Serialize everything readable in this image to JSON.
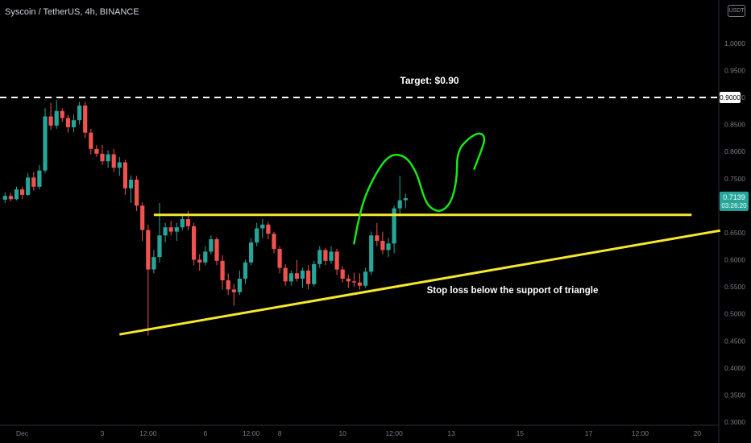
{
  "header": {
    "symbol_title": "Syscoin / TetherUS, 4h, BINANCE",
    "currency": "USDT"
  },
  "annotations": {
    "target_label": "Target: $0.90",
    "stoploss_label": "Stop loss below the support of triangle"
  },
  "price_badge": {
    "price": "0.7139",
    "countdown": "03:26:20",
    "color": "#26a69a"
  },
  "target_badge": {
    "price": "0.9000"
  },
  "colors": {
    "background": "#000000",
    "up": "#26a69a",
    "down": "#ef5350",
    "resistance": "#f6e82c",
    "support": "#f6e82c",
    "projection": "#19e619",
    "target_line": "#ffffff"
  },
  "chart_data": {
    "type": "candlestick",
    "title": "Syscoin / TetherUS, 4h, BINANCE",
    "ylim": [
      0.3,
      1.07
    ],
    "y_ticks": [
      "1.0000",
      "0.9500",
      "0.9000",
      "0.8500",
      "0.8000",
      "0.7500",
      "0.7000",
      "0.6500",
      "0.6000",
      "0.5500",
      "0.5000",
      "0.4500",
      "0.4000",
      "0.3500",
      "0.3000"
    ],
    "y_tick_values": [
      1.0,
      0.95,
      0.9,
      0.85,
      0.8,
      0.75,
      0.7,
      0.65,
      0.6,
      0.55,
      0.5,
      0.45,
      0.4,
      0.35,
      0.3
    ],
    "x_ticks": [
      {
        "label": "Dec",
        "bar": 3
      },
      {
        "label": "3",
        "bar": 17
      },
      {
        "label": "12:00",
        "bar": 25
      },
      {
        "label": "6",
        "bar": 35
      },
      {
        "label": "12:00",
        "bar": 43
      },
      {
        "label": "8",
        "bar": 48
      },
      {
        "label": "10",
        "bar": 59
      },
      {
        "label": "12:00",
        "bar": 68
      },
      {
        "label": "13",
        "bar": 78
      },
      {
        "label": "15",
        "bar": 90
      },
      {
        "label": "17",
        "bar": 102
      },
      {
        "label": "12:00",
        "bar": 111
      },
      {
        "label": "20",
        "bar": 121
      }
    ],
    "candles": [
      [
        0.711,
        0.725,
        0.705,
        0.718
      ],
      [
        0.718,
        0.724,
        0.708,
        0.712
      ],
      [
        0.712,
        0.735,
        0.71,
        0.73
      ],
      [
        0.73,
        0.735,
        0.712,
        0.72
      ],
      [
        0.72,
        0.76,
        0.718,
        0.752
      ],
      [
        0.752,
        0.762,
        0.728,
        0.735
      ],
      [
        0.735,
        0.775,
        0.73,
        0.765
      ],
      [
        0.765,
        0.88,
        0.76,
        0.865
      ],
      [
        0.865,
        0.89,
        0.84,
        0.848
      ],
      [
        0.848,
        0.895,
        0.842,
        0.875
      ],
      [
        0.875,
        0.88,
        0.855,
        0.862
      ],
      [
        0.862,
        0.868,
        0.835,
        0.845
      ],
      [
        0.845,
        0.868,
        0.836,
        0.858
      ],
      [
        0.858,
        0.892,
        0.85,
        0.885
      ],
      [
        0.885,
        0.892,
        0.825,
        0.835
      ],
      [
        0.835,
        0.842,
        0.795,
        0.805
      ],
      [
        0.805,
        0.812,
        0.79,
        0.796
      ],
      [
        0.796,
        0.812,
        0.775,
        0.782
      ],
      [
        0.782,
        0.802,
        0.77,
        0.795
      ],
      [
        0.795,
        0.805,
        0.762,
        0.77
      ],
      [
        0.77,
        0.79,
        0.755,
        0.78
      ],
      [
        0.78,
        0.785,
        0.72,
        0.732
      ],
      [
        0.732,
        0.756,
        0.705,
        0.748
      ],
      [
        0.748,
        0.755,
        0.69,
        0.7
      ],
      [
        0.7,
        0.706,
        0.635,
        0.655
      ],
      [
        0.655,
        0.665,
        0.46,
        0.582
      ],
      [
        0.582,
        0.618,
        0.575,
        0.605
      ],
      [
        0.605,
        0.705,
        0.595,
        0.645
      ],
      [
        0.645,
        0.668,
        0.632,
        0.66
      ],
      [
        0.66,
        0.672,
        0.645,
        0.652
      ],
      [
        0.652,
        0.668,
        0.635,
        0.66
      ],
      [
        0.66,
        0.685,
        0.655,
        0.675
      ],
      [
        0.675,
        0.69,
        0.655,
        0.662
      ],
      [
        0.662,
        0.668,
        0.59,
        0.6
      ],
      [
        0.6,
        0.61,
        0.58,
        0.595
      ],
      [
        0.595,
        0.625,
        0.59,
        0.615
      ],
      [
        0.615,
        0.645,
        0.61,
        0.638
      ],
      [
        0.638,
        0.642,
        0.59,
        0.598
      ],
      [
        0.598,
        0.608,
        0.545,
        0.562
      ],
      [
        0.562,
        0.575,
        0.535,
        0.545
      ],
      [
        0.545,
        0.555,
        0.515,
        0.54
      ],
      [
        0.54,
        0.58,
        0.535,
        0.565
      ],
      [
        0.565,
        0.6,
        0.555,
        0.595
      ],
      [
        0.595,
        0.64,
        0.59,
        0.632
      ],
      [
        0.632,
        0.668,
        0.625,
        0.658
      ],
      [
        0.658,
        0.675,
        0.64,
        0.665
      ],
      [
        0.665,
        0.67,
        0.638,
        0.648
      ],
      [
        0.648,
        0.652,
        0.612,
        0.62
      ],
      [
        0.62,
        0.625,
        0.575,
        0.585
      ],
      [
        0.585,
        0.592,
        0.552,
        0.56
      ],
      [
        0.56,
        0.58,
        0.552,
        0.575
      ],
      [
        0.575,
        0.6,
        0.56,
        0.565
      ],
      [
        0.565,
        0.585,
        0.548,
        0.58
      ],
      [
        0.58,
        0.59,
        0.545,
        0.555
      ],
      [
        0.555,
        0.598,
        0.55,
        0.592
      ],
      [
        0.592,
        0.625,
        0.585,
        0.618
      ],
      [
        0.618,
        0.622,
        0.59,
        0.598
      ],
      [
        0.598,
        0.625,
        0.592,
        0.615
      ],
      [
        0.615,
        0.62,
        0.572,
        0.582
      ],
      [
        0.582,
        0.588,
        0.558,
        0.565
      ],
      [
        0.565,
        0.572,
        0.548,
        0.56
      ],
      [
        0.56,
        0.576,
        0.55,
        0.558
      ],
      [
        0.558,
        0.575,
        0.545,
        0.552
      ],
      [
        0.552,
        0.585,
        0.548,
        0.578
      ],
      [
        0.578,
        0.652,
        0.572,
        0.645
      ],
      [
        0.645,
        0.668,
        0.625,
        0.635
      ],
      [
        0.635,
        0.652,
        0.61,
        0.618
      ],
      [
        0.618,
        0.64,
        0.605,
        0.63
      ],
      [
        0.63,
        0.7,
        0.612,
        0.695
      ],
      [
        0.695,
        0.755,
        0.68,
        0.71
      ],
      [
        0.71,
        0.722,
        0.695,
        0.714
      ]
    ],
    "resistance_line": {
      "from": {
        "bar": 26,
        "price": 0.683
      },
      "to": {
        "bar": 120,
        "price": 0.683
      }
    },
    "support_line": {
      "from": {
        "bar": 20,
        "price": 0.462
      },
      "to": {
        "bar": 125,
        "price": 0.654
      }
    },
    "target_line": {
      "price": 0.9
    },
    "projection_path": [
      {
        "bar": 61,
        "price": 0.63
      },
      {
        "bar": 62,
        "price": 0.69
      },
      {
        "bar": 64,
        "price": 0.745
      },
      {
        "bar": 67,
        "price": 0.795
      },
      {
        "bar": 70,
        "price": 0.793
      },
      {
        "bar": 72,
        "price": 0.76
      },
      {
        "bar": 73,
        "price": 0.722
      },
      {
        "bar": 74,
        "price": 0.698
      },
      {
        "bar": 76,
        "price": 0.687
      },
      {
        "bar": 78,
        "price": 0.705
      },
      {
        "bar": 79,
        "price": 0.75
      },
      {
        "bar": 79,
        "price": 0.8
      },
      {
        "bar": 81,
        "price": 0.825
      },
      {
        "bar": 83,
        "price": 0.836
      },
      {
        "bar": 84,
        "price": 0.825
      },
      {
        "bar": 83,
        "price": 0.795
      },
      {
        "bar": 82,
        "price": 0.768
      }
    ]
  }
}
